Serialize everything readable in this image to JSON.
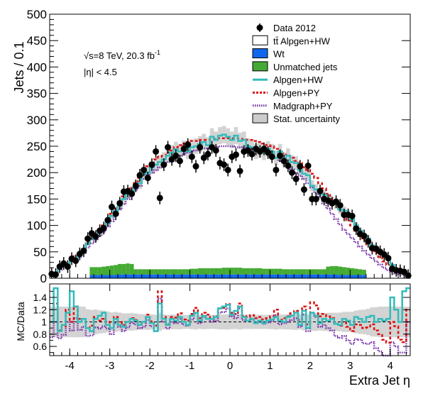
{
  "chart_data": {
    "type": "scatter",
    "xlabel": "Extra Jet η",
    "top_panel": {
      "ylabel": "Jets / 0.1",
      "ylim": [
        0,
        500
      ],
      "xlim": [
        -4.5,
        4.5
      ],
      "yticks": [
        0,
        50,
        100,
        150,
        200,
        250,
        300,
        350,
        400,
        450,
        500
      ],
      "xticks": [
        -4,
        -3,
        -2,
        -1,
        0,
        1,
        2,
        3,
        4
      ],
      "annotation_energy": "√s=8 TeV, 20.3 fb",
      "annotation_energy_sup": "-1",
      "annotation_eta": "|η| < 4.5",
      "legend": [
        {
          "label": "Data 2012",
          "marker": "point",
          "color": "#000000"
        },
        {
          "label": "tt̄ Alpgen+HW",
          "marker": "box",
          "color": "#ffffff"
        },
        {
          "label": "Wt",
          "marker": "box",
          "color": "#1166ee"
        },
        {
          "label": "Unmatched jets",
          "marker": "box",
          "color": "#44aa33"
        },
        {
          "label": "Alpgen+HW",
          "marker": "line",
          "color": "#33bbbb"
        },
        {
          "label": "Alpgen+PY",
          "marker": "dash",
          "color": "#dd1111"
        },
        {
          "label": "Madgraph+PY",
          "marker": "dot",
          "color": "#7733aa"
        },
        {
          "label": "Stat. uncertainty",
          "marker": "box",
          "color": "#cccccc"
        }
      ],
      "data": {
        "x": [
          -4.45,
          -4.35,
          -4.25,
          -4.15,
          -4.05,
          -3.95,
          -3.85,
          -3.75,
          -3.65,
          -3.55,
          -3.45,
          -3.35,
          -3.25,
          -3.15,
          -3.05,
          -2.95,
          -2.85,
          -2.75,
          -2.65,
          -2.55,
          -2.45,
          -2.35,
          -2.25,
          -2.15,
          -2.05,
          -1.95,
          -1.85,
          -1.75,
          -1.65,
          -1.55,
          -1.45,
          -1.35,
          -1.25,
          -1.15,
          -1.05,
          -0.95,
          -0.85,
          -0.75,
          -0.65,
          -0.55,
          -0.45,
          -0.35,
          -0.25,
          -0.15,
          -0.05,
          0.05,
          0.15,
          0.25,
          0.35,
          0.45,
          0.55,
          0.65,
          0.75,
          0.85,
          0.95,
          1.05,
          1.15,
          1.25,
          1.35,
          1.45,
          1.55,
          1.65,
          1.75,
          1.85,
          1.95,
          2.05,
          2.15,
          2.25,
          2.35,
          2.45,
          2.55,
          2.65,
          2.75,
          2.85,
          2.95,
          3.05,
          3.15,
          3.25,
          3.35,
          3.45,
          3.55,
          3.65,
          3.75,
          3.85,
          3.95,
          4.05,
          4.15,
          4.25,
          4.35,
          4.45
        ],
        "y": [
          8,
          7,
          22,
          28,
          22,
          37,
          33,
          46,
          52,
          75,
          85,
          79,
          90,
          95,
          110,
          135,
          122,
          142,
          164,
          165,
          160,
          175,
          195,
          205,
          190,
          215,
          240,
          152,
          215,
          248,
          225,
          232,
          222,
          245,
          253,
          230,
          212,
          248,
          228,
          235,
          248,
          242,
          218,
          215,
          205,
          230,
          234,
          203,
          240,
          242,
          235,
          245,
          240,
          245,
          238,
          230,
          205,
          232,
          222,
          213,
          200,
          188,
          212,
          168,
          213,
          150,
          150,
          165,
          150,
          147,
          142,
          145,
          138,
          120,
          120,
          118,
          94,
          84,
          80,
          70,
          57,
          56,
          50,
          45,
          38,
          18,
          15,
          14,
          12,
          5
        ],
        "yerr": 12
      },
      "alpgen_hw": [
        8,
        8,
        20,
        25,
        25,
        35,
        38,
        45,
        52,
        65,
        75,
        80,
        88,
        95,
        105,
        118,
        128,
        138,
        150,
        160,
        165,
        175,
        180,
        198,
        200,
        210,
        215,
        220,
        225,
        232,
        238,
        244,
        240,
        246,
        240,
        248,
        250,
        254,
        258,
        252,
        268,
        262,
        270,
        272,
        268,
        262,
        270,
        260,
        262,
        250,
        248,
        240,
        244,
        238,
        245,
        240,
        228,
        240,
        225,
        232,
        220,
        218,
        205,
        198,
        195,
        175,
        168,
        162,
        158,
        150,
        146,
        140,
        130,
        128,
        122,
        112,
        100,
        90,
        82,
        75,
        62,
        56,
        52,
        45,
        40,
        25,
        18,
        14,
        12,
        6
      ],
      "alpgen_py": [
        8,
        9,
        19,
        26,
        27,
        38,
        42,
        48,
        55,
        68,
        80,
        85,
        92,
        100,
        110,
        122,
        132,
        142,
        155,
        165,
        170,
        180,
        190,
        205,
        212,
        218,
        225,
        230,
        232,
        238,
        242,
        248,
        252,
        255,
        258,
        260,
        260,
        262,
        262,
        262,
        263,
        264,
        265,
        265,
        265,
        265,
        265,
        264,
        263,
        262,
        262,
        260,
        258,
        255,
        252,
        250,
        245,
        240,
        236,
        232,
        228,
        222,
        218,
        210,
        205,
        198,
        190,
        180,
        170,
        160,
        150,
        140,
        130,
        120,
        110,
        100,
        90,
        80,
        72,
        64,
        55,
        48,
        40,
        32,
        25,
        18,
        14,
        10,
        8,
        6
      ],
      "madgraph_py": [
        6,
        7,
        16,
        22,
        22,
        32,
        35,
        40,
        48,
        58,
        66,
        72,
        80,
        88,
        98,
        108,
        120,
        130,
        140,
        150,
        158,
        168,
        175,
        188,
        195,
        200,
        205,
        210,
        215,
        220,
        225,
        228,
        232,
        235,
        238,
        240,
        242,
        244,
        246,
        246,
        248,
        248,
        250,
        250,
        250,
        250,
        248,
        248,
        247,
        246,
        245,
        243,
        241,
        238,
        235,
        232,
        228,
        222,
        218,
        212,
        206,
        200,
        194,
        188,
        180,
        172,
        162,
        152,
        142,
        132,
        122,
        112,
        102,
        92,
        84,
        76,
        68,
        60,
        52,
        45,
        38,
        32,
        26,
        20,
        15,
        12,
        9,
        7,
        6,
        5
      ],
      "unmatched": [
        0,
        0,
        0,
        0,
        0,
        0,
        0,
        0,
        0,
        0,
        15,
        15,
        15,
        16,
        17,
        18,
        19,
        20,
        20,
        21,
        20,
        10,
        10,
        10,
        10,
        10,
        10,
        10,
        10,
        10,
        10,
        10,
        10,
        10,
        10,
        11,
        11,
        12,
        12,
        12,
        12,
        12,
        12,
        13,
        13,
        13,
        13,
        13,
        12,
        12,
        12,
        12,
        12,
        11,
        11,
        11,
        11,
        11,
        10,
        10,
        10,
        10,
        10,
        10,
        10,
        10,
        10,
        10,
        10,
        15,
        16,
        16,
        16,
        15,
        14,
        13,
        12,
        11,
        10,
        0,
        0,
        0,
        0,
        0,
        0,
        0,
        0,
        0,
        0,
        0
      ],
      "wt": [
        0,
        0,
        0,
        0,
        0,
        0,
        0,
        0,
        0,
        0,
        6,
        6,
        6,
        6,
        6,
        6,
        6,
        7,
        7,
        7,
        7,
        7,
        7,
        7,
        7,
        7,
        7,
        7,
        7,
        7,
        7,
        7,
        7,
        7,
        7,
        7,
        7,
        7,
        7,
        7,
        7,
        7,
        7,
        7,
        7,
        7,
        7,
        7,
        7,
        7,
        7,
        7,
        7,
        7,
        7,
        7,
        7,
        7,
        7,
        7,
        7,
        7,
        7,
        7,
        7,
        7,
        7,
        7,
        7,
        7,
        7,
        7,
        6,
        6,
        6,
        6,
        6,
        6,
        6,
        0,
        0,
        0,
        0,
        0,
        0,
        0,
        0,
        0,
        0,
        0
      ]
    },
    "ratio_panel": {
      "ylabel": "MC/Data",
      "ylim": [
        0.45,
        1.62
      ],
      "yticks": [
        0.6,
        0.8,
        1,
        1.2,
        1.4
      ],
      "ytick_labels": [
        "0.6",
        "0.8",
        "1",
        "1.2",
        "1.4"
      ],
      "xtick_labels": [
        "-4",
        "-3",
        "-2",
        "-1",
        "0",
        "1",
        "2",
        "3",
        "4"
      ],
      "alpgen_hw": [
        1.0,
        1.55,
        0.85,
        0.95,
        1.15,
        1.5,
        1.25,
        1.0,
        1.05,
        0.9,
        0.85,
        1.05,
        1.1,
        1.15,
        0.95,
        0.9,
        1.05,
        0.95,
        0.92,
        1.0,
        1.05,
        1.02,
        0.95,
        1.0,
        1.08,
        0.98,
        0.85,
        1.3,
        1.05,
        0.95,
        1.05,
        1.02,
        1.08,
        1.0,
        0.95,
        1.1,
        1.15,
        1.02,
        1.1,
        1.05,
        1.05,
        1.08,
        1.22,
        1.25,
        1.28,
        1.12,
        1.18,
        1.25,
        1.08,
        1.02,
        1.05,
        0.98,
        1.02,
        0.98,
        1.02,
        1.04,
        1.08,
        1.02,
        1.0,
        1.08,
        1.1,
        1.15,
        0.95,
        1.18,
        0.9,
        1.15,
        1.1,
        0.98,
        1.05,
        1.02,
        1.05,
        0.97,
        0.95,
        1.05,
        1.02,
        0.95,
        1.08,
        1.05,
        1.0,
        1.08,
        1.1,
        1.0,
        1.05,
        1.02,
        1.05,
        1.4,
        1.2,
        1.0,
        1.5,
        1.55
      ],
      "alpgen_py": [
        1.0,
        1.3,
        0.86,
        0.93,
        1.2,
        1.0,
        1.25,
        1.05,
        1.05,
        0.9,
        0.94,
        1.08,
        1.02,
        1.05,
        1.0,
        0.9,
        1.08,
        1.0,
        0.95,
        1.0,
        1.06,
        1.03,
        0.97,
        1.0,
        1.12,
        1.01,
        0.94,
        1.5,
        1.08,
        0.96,
        1.08,
        1.07,
        1.14,
        1.04,
        1.02,
        1.13,
        1.23,
        1.06,
        1.15,
        1.12,
        1.06,
        1.09,
        1.22,
        1.23,
        1.29,
        1.15,
        1.13,
        1.3,
        1.1,
        1.08,
        1.11,
        1.06,
        1.08,
        1.04,
        1.06,
        1.09,
        1.2,
        1.03,
        1.06,
        1.09,
        1.14,
        1.18,
        1.03,
        1.25,
        0.96,
        1.32,
        1.27,
        1.09,
        1.13,
        1.09,
        1.06,
        0.97,
        0.94,
        1.0,
        0.92,
        0.85,
        0.96,
        0.95,
        0.9,
        0.91,
        0.96,
        0.86,
        0.8,
        0.71,
        0.66,
        1.0,
        0.93,
        0.71,
        0.67,
        1.2
      ],
      "madgraph_py": [
        0.75,
        1.0,
        0.73,
        0.79,
        1.0,
        0.86,
        1.06,
        0.87,
        0.92,
        0.77,
        0.78,
        0.91,
        0.89,
        0.93,
        0.89,
        0.8,
        0.98,
        0.92,
        0.85,
        0.91,
        0.99,
        0.96,
        0.9,
        0.92,
        1.03,
        0.93,
        0.85,
        1.38,
        1.0,
        0.89,
        1.0,
        0.98,
        1.05,
        0.96,
        0.94,
        1.04,
        1.14,
        0.98,
        1.08,
        1.05,
        1.0,
        1.02,
        1.15,
        1.16,
        1.22,
        1.09,
        1.06,
        1.22,
        1.03,
        1.02,
        1.04,
        0.99,
        1.0,
        0.97,
        0.99,
        1.01,
        1.11,
        0.96,
        0.98,
        1.0,
        1.03,
        1.06,
        0.92,
        1.12,
        0.85,
        1.15,
        1.08,
        0.92,
        0.95,
        0.9,
        0.86,
        0.77,
        0.74,
        0.77,
        0.7,
        0.64,
        0.72,
        0.71,
        0.65,
        0.64,
        0.67,
        0.57,
        0.52,
        0.44,
        0.39,
        0.67,
        0.6,
        0.5,
        0.5,
        1.0
      ]
    }
  }
}
